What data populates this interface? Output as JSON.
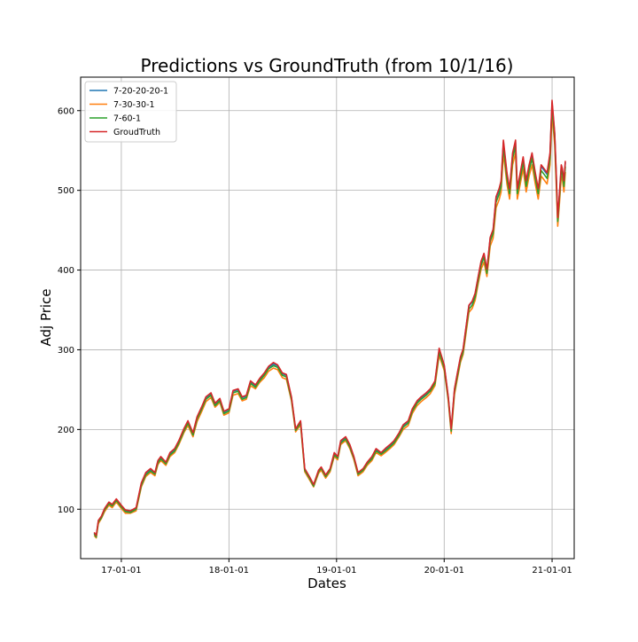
{
  "chart_data": {
    "type": "line",
    "title": "Predictions vs GroundTruth (from 10/1/16)",
    "xlabel": "Dates",
    "ylabel": "Adj Price",
    "x_ticks": [
      "17-01-01",
      "18-01-01",
      "19-01-01",
      "20-01-01",
      "21-01-01"
    ],
    "y_ticks": [
      100,
      200,
      300,
      400,
      500,
      600
    ],
    "xlim": [
      "2016-08-16",
      "2021-03-17"
    ],
    "ylim": [
      38,
      642
    ],
    "grid": true,
    "legend_position": "upper-left",
    "x": [
      "2016-10-01",
      "2016-10-08",
      "2016-10-15",
      "2016-10-25",
      "2016-11-05",
      "2016-11-20",
      "2016-12-01",
      "2016-12-15",
      "2017-01-01",
      "2017-01-15",
      "2017-02-01",
      "2017-02-20",
      "2017-03-10",
      "2017-03-25",
      "2017-04-10",
      "2017-04-25",
      "2017-05-05",
      "2017-05-15",
      "2017-06-01",
      "2017-06-15",
      "2017-07-01",
      "2017-07-15",
      "2017-08-01",
      "2017-08-15",
      "2017-09-01",
      "2017-09-15",
      "2017-10-01",
      "2017-10-15",
      "2017-11-01",
      "2017-11-15",
      "2017-12-01",
      "2017-12-15",
      "2018-01-01",
      "2018-01-15",
      "2018-02-01",
      "2018-02-15",
      "2018-03-01",
      "2018-03-15",
      "2018-04-01",
      "2018-04-15",
      "2018-05-01",
      "2018-05-15",
      "2018-06-01",
      "2018-06-15",
      "2018-07-01",
      "2018-07-15",
      "2018-08-01",
      "2018-08-15",
      "2018-09-01",
      "2018-09-15",
      "2018-10-01",
      "2018-10-15",
      "2018-11-01",
      "2018-11-10",
      "2018-11-25",
      "2018-12-10",
      "2018-12-24",
      "2019-01-05",
      "2019-01-15",
      "2019-02-01",
      "2019-02-15",
      "2019-03-01",
      "2019-03-15",
      "2019-04-01",
      "2019-04-15",
      "2019-05-01",
      "2019-05-15",
      "2019-06-01",
      "2019-06-15",
      "2019-07-01",
      "2019-07-15",
      "2019-08-01",
      "2019-08-15",
      "2019-09-01",
      "2019-09-15",
      "2019-10-01",
      "2019-10-15",
      "2019-11-01",
      "2019-11-15",
      "2019-12-01",
      "2019-12-15",
      "2020-01-01",
      "2020-01-15",
      "2020-01-25",
      "2020-02-05",
      "2020-02-15",
      "2020-02-25",
      "2020-03-05",
      "2020-03-16",
      "2020-03-25",
      "2020-04-05",
      "2020-04-15",
      "2020-04-25",
      "2020-05-05",
      "2020-05-15",
      "2020-05-25",
      "2020-06-05",
      "2020-06-15",
      "2020-06-25",
      "2020-07-05",
      "2020-07-12",
      "2020-07-20",
      "2020-08-01",
      "2020-08-10",
      "2020-08-20",
      "2020-08-30",
      "2020-09-05",
      "2020-09-15",
      "2020-09-25",
      "2020-10-05",
      "2020-10-15",
      "2020-10-25",
      "2020-11-05",
      "2020-11-15",
      "2020-11-25",
      "2020-12-05",
      "2020-12-15",
      "2020-12-25",
      "2021-01-01",
      "2021-01-10",
      "2021-01-15",
      "2021-01-20",
      "2021-01-27",
      "2021-02-01",
      "2021-02-05",
      "2021-02-10",
      "2021-02-15"
    ],
    "series": [
      {
        "name": "7-20-20-20-1",
        "color": "#1f77b4",
        "values": [
          70,
          66,
          85,
          90,
          100,
          108,
          105,
          112,
          104,
          98,
          97,
          101,
          132,
          145,
          150,
          145,
          160,
          165,
          158,
          170,
          175,
          185,
          200,
          210,
          195,
          215,
          228,
          240,
          245,
          232,
          238,
          222,
          225,
          248,
          250,
          240,
          242,
          260,
          255,
          263,
          270,
          278,
          282,
          280,
          270,
          268,
          240,
          200,
          210,
          150,
          140,
          130,
          148,
          152,
          142,
          150,
          170,
          165,
          185,
          190,
          180,
          165,
          145,
          150,
          158,
          165,
          175,
          170,
          175,
          180,
          185,
          195,
          205,
          210,
          225,
          235,
          240,
          245,
          250,
          260,
          300,
          280,
          240,
          200,
          250,
          270,
          290,
          300,
          330,
          355,
          360,
          370,
          390,
          410,
          420,
          400,
          440,
          450,
          490,
          500,
          510,
          560,
          520,
          500,
          545,
          560,
          500,
          520,
          540,
          510,
          530,
          545,
          520,
          500,
          530,
          525,
          520,
          545,
          610,
          570,
          520,
          465,
          500,
          530,
          525,
          510,
          535
        ]
      },
      {
        "name": "7-30-30-1",
        "color": "#ff7f0e",
        "values": [
          67,
          64,
          82,
          88,
          97,
          105,
          102,
          109,
          101,
          95,
          95,
          98,
          128,
          141,
          146,
          142,
          156,
          161,
          155,
          166,
          171,
          181,
          196,
          205,
          191,
          210,
          223,
          235,
          240,
          228,
          234,
          218,
          221,
          243,
          245,
          236,
          238,
          255,
          251,
          259,
          265,
          273,
          277,
          275,
          265,
          263,
          236,
          197,
          206,
          147,
          137,
          128,
          145,
          149,
          139,
          147,
          166,
          162,
          181,
          186,
          176,
          162,
          142,
          147,
          155,
          161,
          171,
          167,
          171,
          176,
          181,
          191,
          200,
          205,
          220,
          230,
          235,
          240,
          245,
          255,
          293,
          274,
          236,
          195,
          244,
          264,
          284,
          294,
          323,
          347,
          352,
          362,
          382,
          401,
          410,
          392,
          430,
          440,
          478,
          488,
          498,
          547,
          508,
          489,
          532,
          547,
          489,
          508,
          527,
          498,
          518,
          532,
          508,
          489,
          518,
          513,
          508,
          532,
          596,
          557,
          508,
          455,
          489,
          518,
          513,
          498,
          523
        ]
      },
      {
        "name": "7-60-1",
        "color": "#2ca02c",
        "values": [
          69,
          65,
          84,
          89,
          99,
          107,
          104,
          111,
          103,
          97,
          96,
          100,
          130,
          143,
          148,
          144,
          158,
          163,
          157,
          168,
          173,
          183,
          198,
          208,
          193,
          213,
          226,
          238,
          243,
          230,
          236,
          220,
          223,
          246,
          248,
          238,
          240,
          258,
          253,
          261,
          268,
          276,
          280,
          278,
          268,
          266,
          238,
          199,
          208,
          149,
          139,
          129,
          147,
          151,
          141,
          149,
          168,
          164,
          183,
          188,
          178,
          164,
          144,
          149,
          157,
          163,
          173,
          169,
          173,
          178,
          183,
          193,
          203,
          208,
          223,
          233,
          238,
          243,
          248,
          258,
          297,
          277,
          238,
          198,
          247,
          267,
          287,
          297,
          327,
          351,
          356,
          366,
          386,
          406,
          416,
          396,
          436,
          446,
          485,
          495,
          505,
          555,
          515,
          496,
          540,
          555,
          496,
          515,
          535,
          505,
          525,
          540,
          515,
          496,
          525,
          520,
          515,
          540,
          604,
          565,
          515,
          461,
          496,
          525,
          520,
          505,
          530
        ]
      },
      {
        "name": "GroudTruth",
        "color": "#d62728",
        "values": [
          71,
          67,
          86,
          91,
          101,
          109,
          106,
          113,
          105,
          99,
          98,
          102,
          133,
          146,
          151,
          146,
          161,
          166,
          159,
          171,
          176,
          186,
          201,
          211,
          196,
          216,
          229,
          241,
          246,
          233,
          239,
          223,
          226,
          249,
          251,
          241,
          243,
          261,
          256,
          264,
          271,
          279,
          284,
          281,
          271,
          269,
          241,
          201,
          211,
          151,
          141,
          131,
          149,
          153,
          143,
          151,
          171,
          166,
          186,
          191,
          181,
          166,
          146,
          151,
          159,
          166,
          176,
          171,
          176,
          181,
          186,
          196,
          206,
          211,
          226,
          236,
          241,
          246,
          251,
          261,
          302,
          281,
          241,
          201,
          251,
          271,
          291,
          301,
          331,
          356,
          361,
          371,
          391,
          411,
          421,
          401,
          441,
          451,
          492,
          502,
          512,
          563,
          522,
          502,
          547,
          563,
          502,
          522,
          542,
          512,
          532,
          547,
          522,
          502,
          532,
          527,
          522,
          547,
          613,
          572,
          522,
          466,
          502,
          532,
          527,
          512,
          537
        ]
      }
    ]
  }
}
